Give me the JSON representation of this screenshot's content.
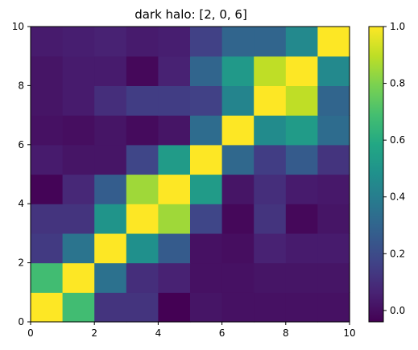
{
  "chart_data": {
    "type": "heatmap",
    "title": "dark halo: [2, 0, 6]",
    "xlabel": "",
    "ylabel": "",
    "xlim": [
      0,
      10
    ],
    "ylim": [
      0,
      10
    ],
    "x_ticks": [
      "0",
      "2",
      "4",
      "6",
      "8",
      "10"
    ],
    "y_ticks": [
      "0",
      "2",
      "4",
      "6",
      "8",
      "10"
    ],
    "colormap": "viridis",
    "clim": [
      -0.04,
      1.0
    ],
    "colorbar_ticks": [
      "0.0",
      "0.2",
      "0.4",
      "0.6",
      "0.8",
      "1.0"
    ],
    "colorbar_tick_values": [
      0.0,
      0.2,
      0.4,
      0.6,
      0.8,
      1.0
    ],
    "rows_bottom_to_top": [
      [
        1.0,
        0.68,
        0.12,
        0.12,
        -0.04,
        0.02,
        0.01,
        0.01,
        0.01,
        0.01
      ],
      [
        0.68,
        1.0,
        0.35,
        0.1,
        0.06,
        0.01,
        0.01,
        0.02,
        0.02,
        0.02
      ],
      [
        0.14,
        0.36,
        1.0,
        0.48,
        0.26,
        0.01,
        0.0,
        0.06,
        0.04,
        0.04
      ],
      [
        0.12,
        0.12,
        0.5,
        1.0,
        0.85,
        0.18,
        -0.02,
        0.12,
        -0.02,
        0.02
      ],
      [
        -0.03,
        0.08,
        0.27,
        0.85,
        1.0,
        0.53,
        0.02,
        0.1,
        0.04,
        0.03
      ],
      [
        0.04,
        0.02,
        0.02,
        0.18,
        0.53,
        1.0,
        0.31,
        0.15,
        0.26,
        0.12
      ],
      [
        0.01,
        0.0,
        0.02,
        -0.01,
        0.02,
        0.33,
        1.0,
        0.46,
        0.53,
        0.33
      ],
      [
        0.02,
        0.04,
        0.1,
        0.15,
        0.15,
        0.16,
        0.43,
        1.0,
        0.9,
        0.3
      ],
      [
        0.02,
        0.04,
        0.04,
        -0.02,
        0.06,
        0.3,
        0.52,
        0.9,
        1.0,
        0.45
      ],
      [
        0.04,
        0.05,
        0.06,
        0.04,
        0.05,
        0.16,
        0.3,
        0.3,
        0.45,
        1.0
      ]
    ]
  }
}
